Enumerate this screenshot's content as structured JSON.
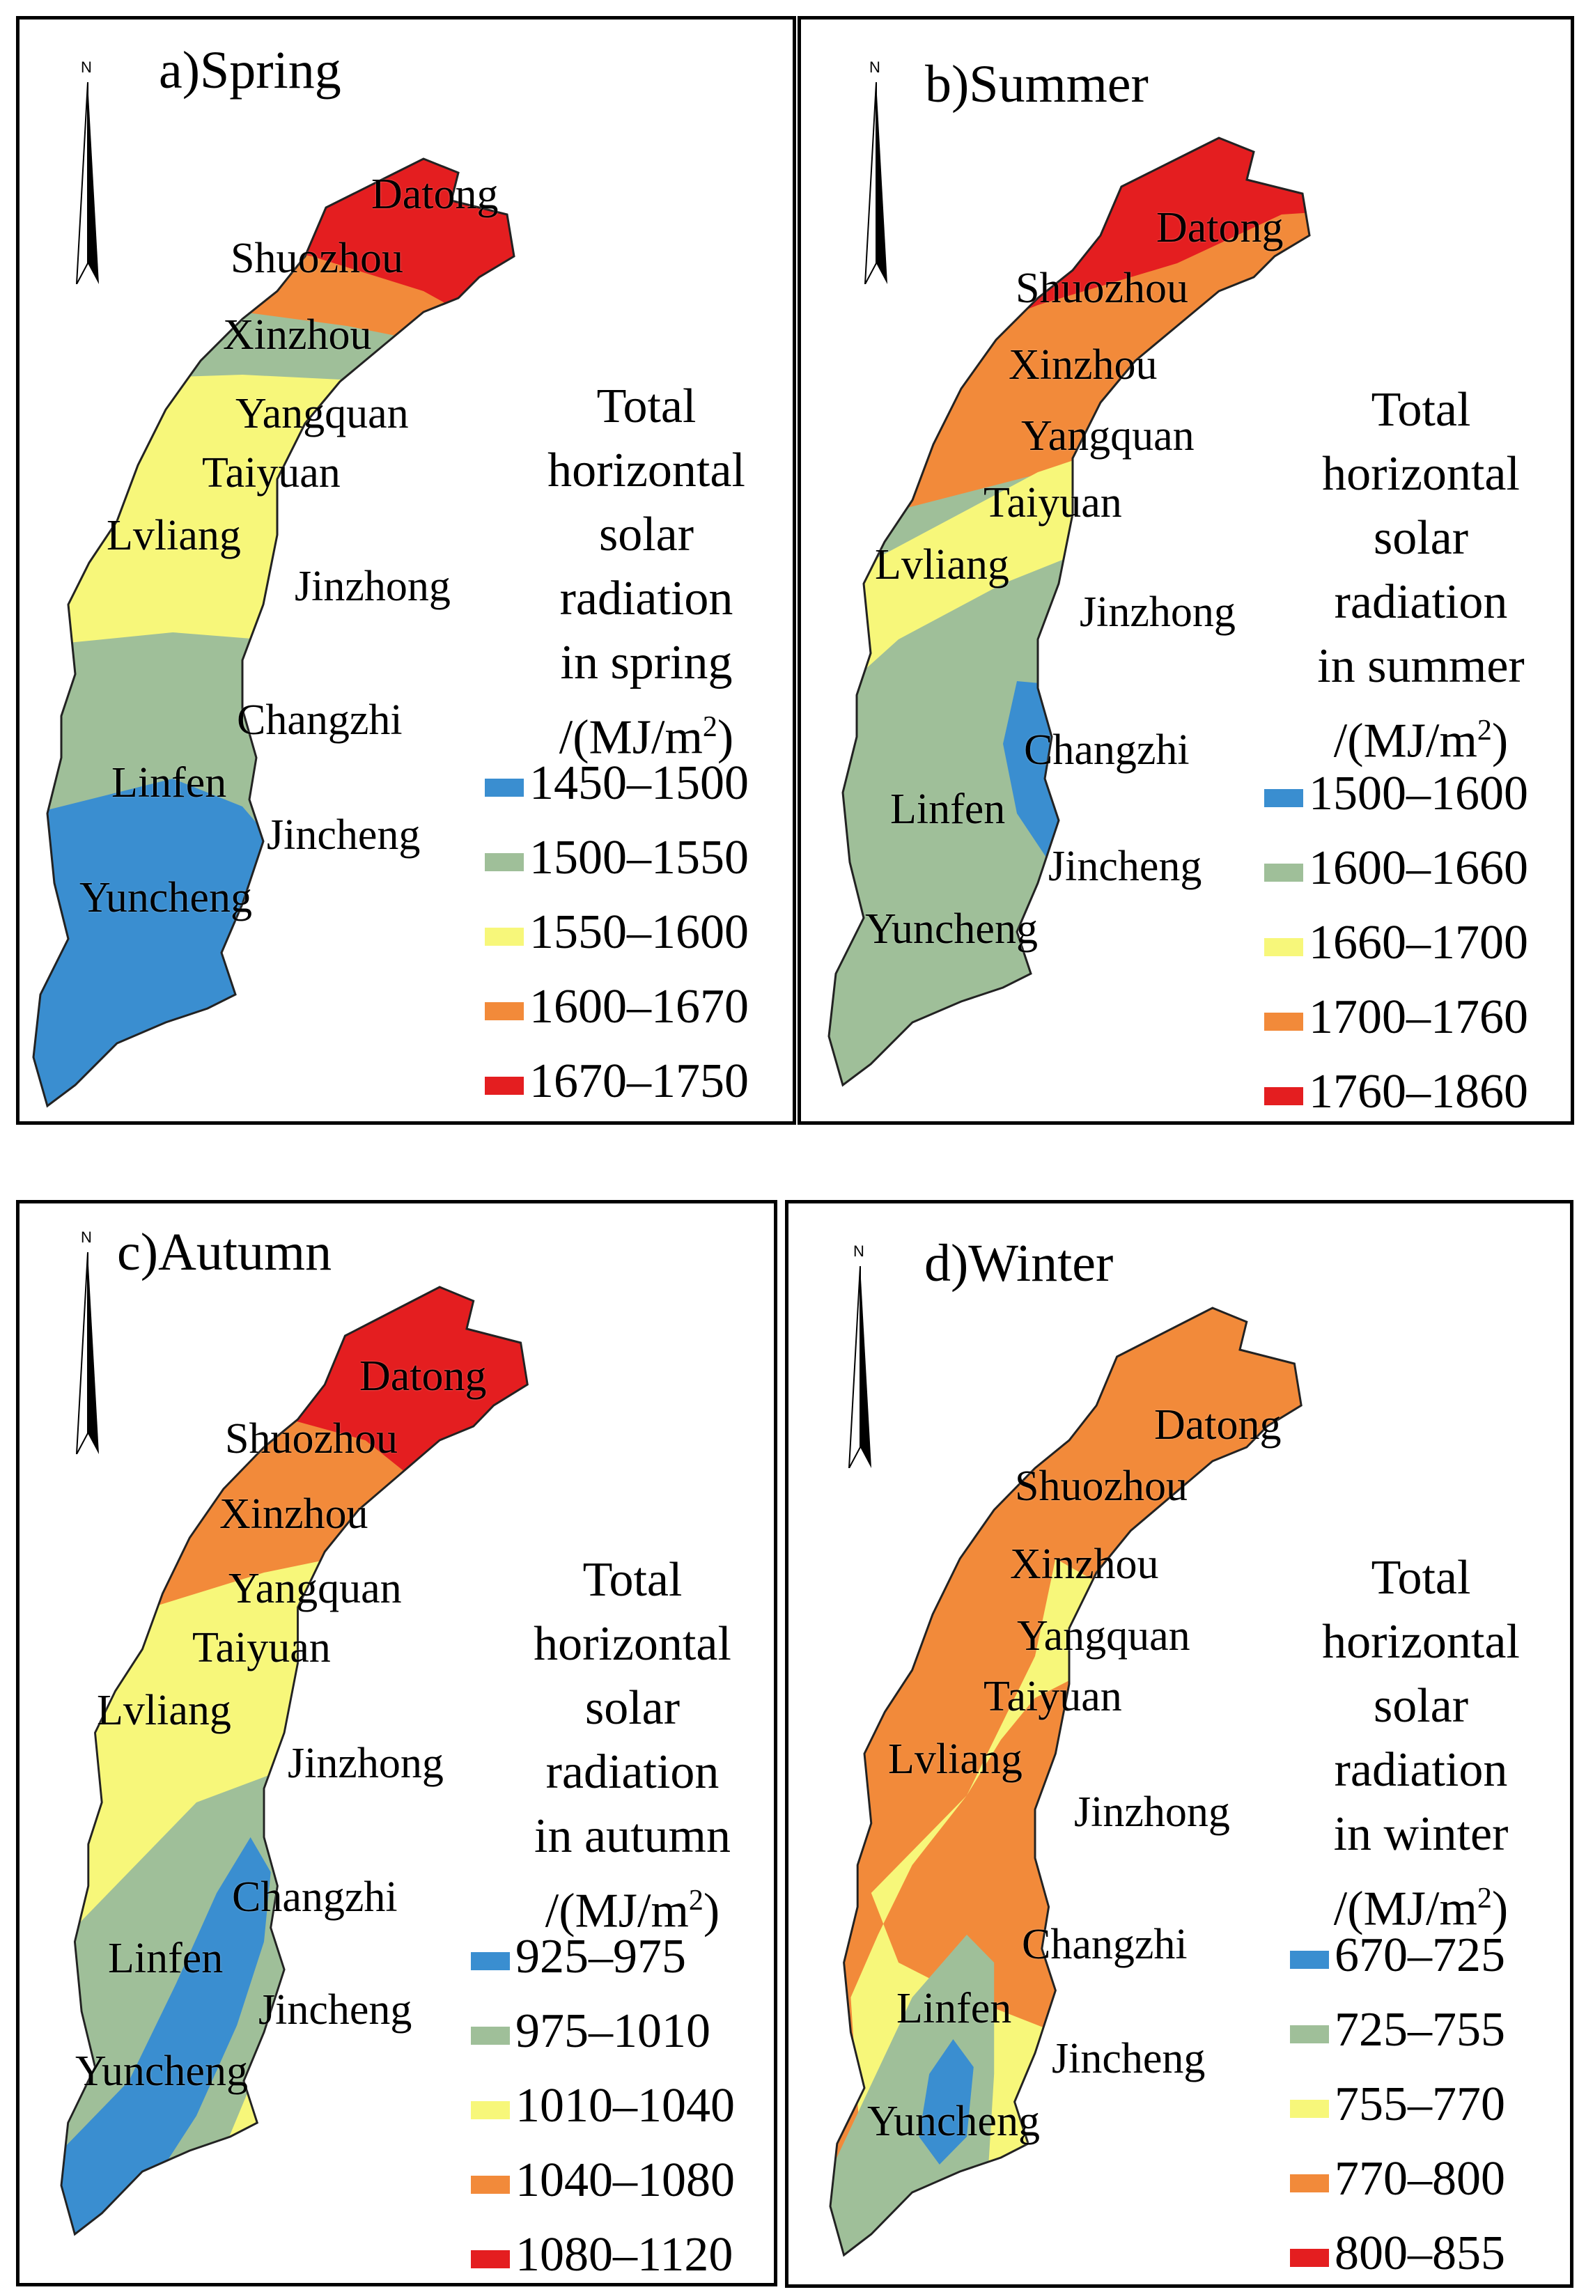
{
  "colors": {
    "blue": "#3a8ed0",
    "green": "#9fbf99",
    "yellow": "#f7f77a",
    "orange": "#f28a3a",
    "red": "#e41e20",
    "boundary": "#222222"
  },
  "legend_lines": [
    "Total",
    "horizontal",
    "solar",
    "radiation"
  ],
  "unit_prefix": "/(MJ/m",
  "unit_sup": "2",
  "unit_suffix": ")",
  "north_label": "N",
  "panels": [
    {
      "title": "a)Spring",
      "season_line": "in spring",
      "cities": {
        "datong": "Datong",
        "shuozhou": "Shuozhou",
        "xinzhou": "Xinzhou",
        "yangquan": "Yangquan",
        "taiyuan": "Taiyuan",
        "lvliang": "Lvliang",
        "jinzhong": "Jinzhong",
        "changzhi": "Changzhi",
        "linfen": "Linfen",
        "jincheng": "Jincheng",
        "yuncheng": "Yuncheng"
      },
      "legend": [
        {
          "label": "1450–1500",
          "color": "#3a8ed0"
        },
        {
          "label": "1500–1550",
          "color": "#9fbf99"
        },
        {
          "label": "1550–1600",
          "color": "#f7f77a"
        },
        {
          "label": "1600–1670",
          "color": "#f28a3a"
        },
        {
          "label": "1670–1750",
          "color": "#e41e20"
        }
      ]
    },
    {
      "title": "b)Summer",
      "season_line": "in summer",
      "cities": {
        "datong": "Datong",
        "shuozhou": "Shuozhou",
        "xinzhou": "Xinzhou",
        "yangquan": "Yangquan",
        "taiyuan": "Taiyuan",
        "lvliang": "Lvliang",
        "jinzhong": "Jinzhong",
        "changzhi": "Changzhi",
        "linfen": "Linfen",
        "jincheng": "Jincheng",
        "yuncheng": "Yuncheng"
      },
      "legend": [
        {
          "label": "1500–1600",
          "color": "#3a8ed0"
        },
        {
          "label": "1600–1660",
          "color": "#9fbf99"
        },
        {
          "label": "1660–1700",
          "color": "#f7f77a"
        },
        {
          "label": "1700–1760",
          "color": "#f28a3a"
        },
        {
          "label": "1760–1860",
          "color": "#e41e20"
        }
      ]
    },
    {
      "title": "c)Autumn",
      "season_line": "in autumn",
      "cities": {
        "datong": "Datong",
        "shuozhou": "Shuozhou",
        "xinzhou": "Xinzhou",
        "yangquan": "Yangquan",
        "taiyuan": "Taiyuan",
        "lvliang": "Lvliang",
        "jinzhong": "Jinzhong",
        "changzhi": "Changzhi",
        "linfen": "Linfen",
        "jincheng": "Jincheng",
        "yuncheng": "Yuncheng"
      },
      "legend": [
        {
          "label": "925–975",
          "color": "#3a8ed0"
        },
        {
          "label": "975–1010",
          "color": "#9fbf99"
        },
        {
          "label": "1010–1040",
          "color": "#f7f77a"
        },
        {
          "label": "1040–1080",
          "color": "#f28a3a"
        },
        {
          "label": "1080–1120",
          "color": "#e41e20"
        }
      ]
    },
    {
      "title": "d)Winter",
      "season_line": "in winter",
      "cities": {
        "datong": "Datong",
        "shuozhou": "Shuozhou",
        "xinzhou": "Xinzhou",
        "yangquan": "Yangquan",
        "taiyuan": "Taiyuan",
        "lvliang": "Lvliang",
        "jinzhong": "Jinzhong",
        "changzhi": "Changzhi",
        "linfen": "Linfen",
        "jincheng": "Jincheng",
        "yuncheng": "Yuncheng"
      },
      "legend": [
        {
          "label": "670–725",
          "color": "#3a8ed0"
        },
        {
          "label": "725–755",
          "color": "#9fbf99"
        },
        {
          "label": "755–770",
          "color": "#f7f77a"
        },
        {
          "label": "770–800",
          "color": "#f28a3a"
        },
        {
          "label": "800–855",
          "color": "#e41e20"
        }
      ]
    }
  ]
}
